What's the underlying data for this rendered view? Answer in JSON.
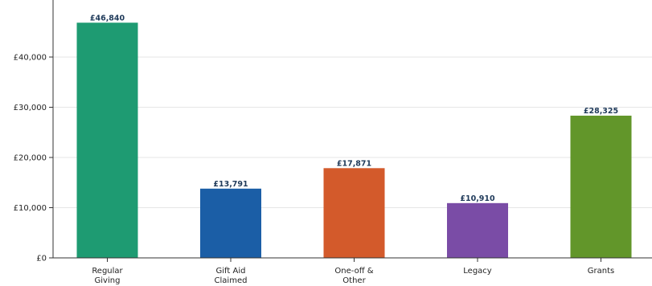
{
  "chart_data": {
    "type": "bar",
    "title": "",
    "xlabel": "",
    "ylabel": "",
    "categories": [
      "Regular Giving",
      "Gift Aid Claimed",
      "One-off & Other",
      "Legacy",
      "Grants"
    ],
    "category_label_lines": [
      [
        "Regular",
        "Giving"
      ],
      [
        "Gift Aid",
        "Claimed"
      ],
      [
        "One-off &",
        "Other"
      ],
      [
        "Legacy"
      ],
      [
        "Grants"
      ]
    ],
    "values": [
      46840,
      13791,
      17871,
      10910,
      28325
    ],
    "data_labels": [
      "£46,840",
      "£13,791",
      "£17,871",
      "£10,910",
      "£28,325"
    ],
    "colors": [
      "#1e9b72",
      "#1b5ea6",
      "#d35a2b",
      "#7a4ca6",
      "#62962a"
    ],
    "ylim": [
      0,
      48000
    ],
    "yticks": [
      0,
      10000,
      20000,
      30000,
      40000
    ],
    "ytick_labels": [
      "£0",
      "£10,000",
      "£20,000",
      "£30,000",
      "£40,000"
    ],
    "grid": true,
    "legend": "none",
    "data_label_color": "#1f3a5a"
  }
}
